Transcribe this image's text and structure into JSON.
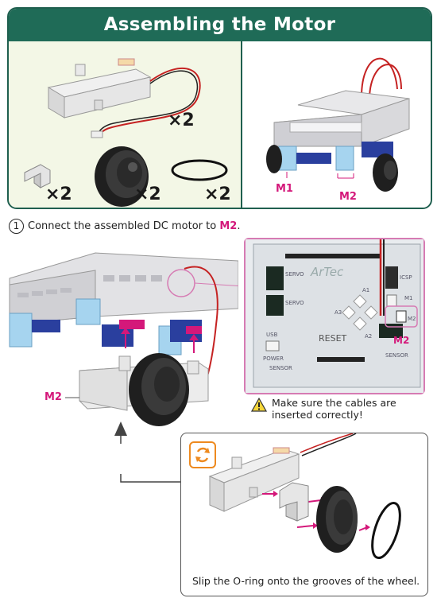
{
  "header": {
    "title": "Assembling the Motor"
  },
  "parts": {
    "motor_qty": "×2",
    "bracket_qty": "×2",
    "wheel_qty": "×2",
    "oring_qty": "×2"
  },
  "robot_preview": {
    "left_label": "M1",
    "right_label": "M2"
  },
  "step": {
    "number": "1",
    "text_before": "Connect the assembled DC motor to ",
    "port": "M2",
    "text_after": "."
  },
  "assembly": {
    "motor_label": "M2"
  },
  "board": {
    "logo": "ArTec",
    "reset_label": "RESET",
    "port_label": "M2",
    "labels": {
      "servo_top": "SERVO",
      "servo_mid": "SERVO",
      "a1": "A1",
      "a3": "A3",
      "a2": "A2",
      "sensor_left": "SENSOR",
      "sensor_right": "SENSOR",
      "power": "POWER",
      "usb": "USB",
      "icsp": "ICSP",
      "m1": "M1",
      "m2_small": "M2"
    }
  },
  "warning": {
    "text": "Make sure the cables are inserted correctly!"
  },
  "wheel_step": {
    "caption": "Slip the O-ring onto the grooves of the wheel."
  },
  "colors": {
    "header": "#1f6b57",
    "accent": "#d4187a",
    "board_frame": "#d67bb3",
    "rotate_icon": "#ee8a1f",
    "servo_blue": "#2a3f9e",
    "light_blue": "#a6d4ef"
  }
}
